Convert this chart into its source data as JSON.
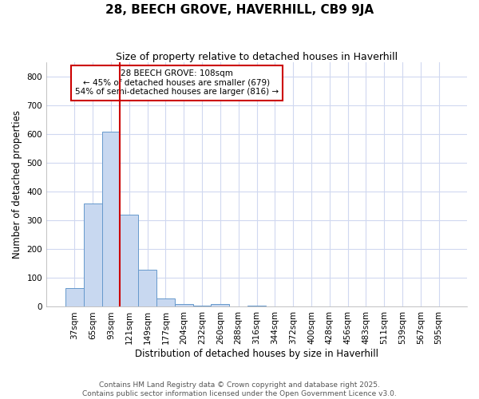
{
  "title": "28, BEECH GROVE, HAVERHILL, CB9 9JA",
  "subtitle": "Size of property relative to detached houses in Haverhill",
  "xlabel": "Distribution of detached houses by size in Haverhill",
  "ylabel": "Number of detached properties",
  "footer_line1": "Contains HM Land Registry data © Crown copyright and database right 2025.",
  "footer_line2": "Contains public sector information licensed under the Open Government Licence v3.0.",
  "bin_labels": [
    "37sqm",
    "65sqm",
    "93sqm",
    "121sqm",
    "149sqm",
    "177sqm",
    "204sqm",
    "232sqm",
    "260sqm",
    "288sqm",
    "316sqm",
    "344sqm",
    "372sqm",
    "400sqm",
    "428sqm",
    "456sqm",
    "483sqm",
    "511sqm",
    "539sqm",
    "567sqm",
    "595sqm"
  ],
  "bar_values": [
    65,
    360,
    610,
    320,
    130,
    28,
    10,
    5,
    10,
    0,
    5,
    0,
    0,
    0,
    0,
    0,
    0,
    0,
    0,
    0,
    0
  ],
  "bar_color": "#c8d8f0",
  "bar_edge_color": "#6699cc",
  "annotation_text": "28 BEECH GROVE: 108sqm\n← 45% of detached houses are smaller (679)\n54% of semi-detached houses are larger (816) →",
  "annotation_box_color": "white",
  "annotation_border_color": "#cc0000",
  "red_line_color": "#cc0000",
  "ylim": [
    0,
    850
  ],
  "yticks": [
    0,
    100,
    200,
    300,
    400,
    500,
    600,
    700,
    800
  ],
  "background_color": "#ffffff",
  "plot_bg_color": "#ffffff",
  "grid_color": "#d0d8f0",
  "title_fontsize": 11,
  "subtitle_fontsize": 9,
  "axis_label_fontsize": 8.5,
  "tick_fontsize": 7.5,
  "footer_fontsize": 6.5
}
